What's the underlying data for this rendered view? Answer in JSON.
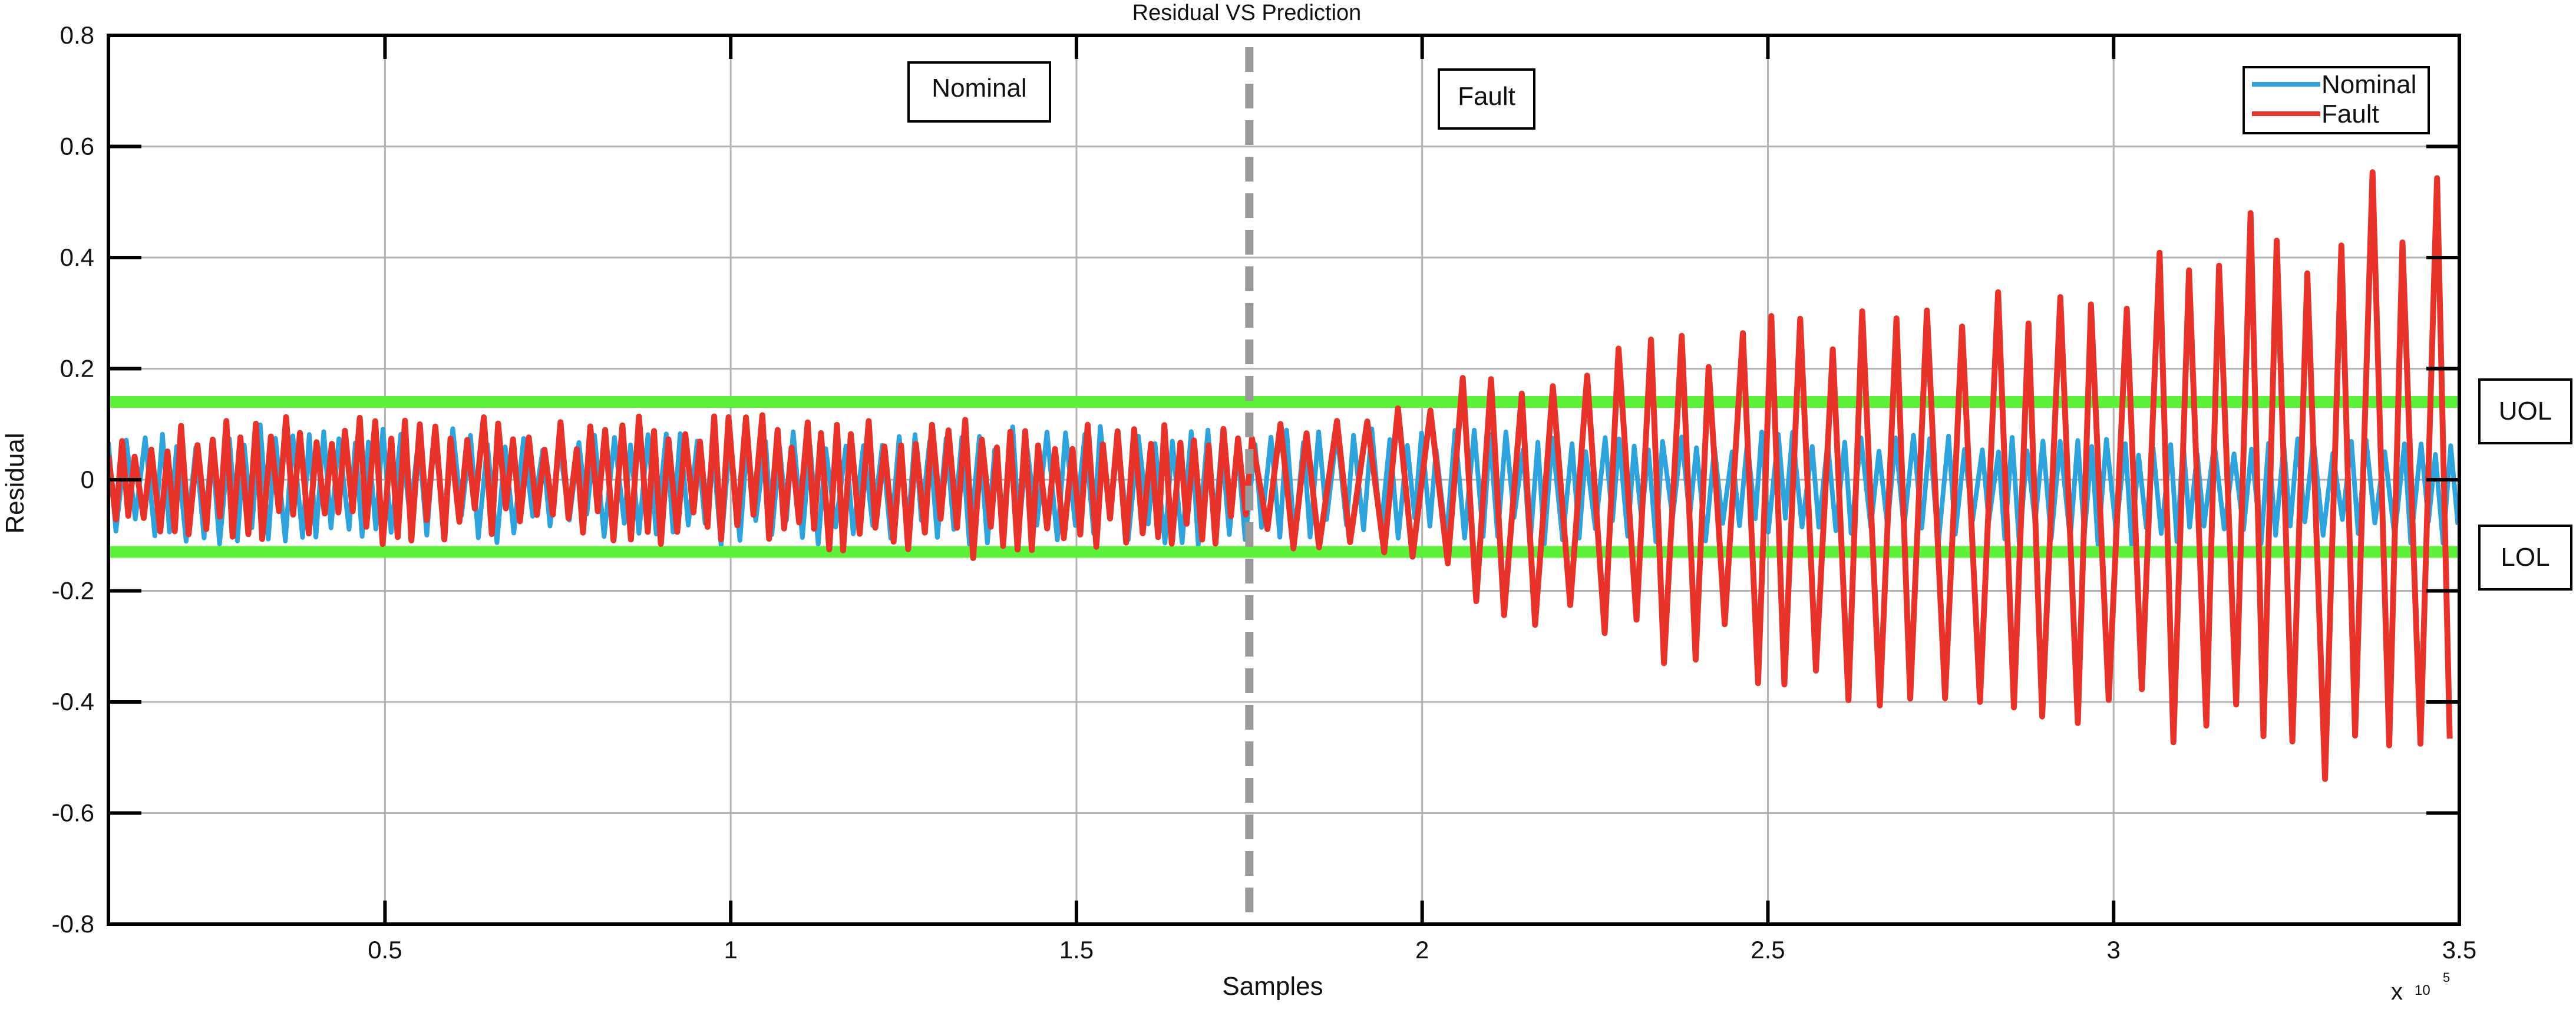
{
  "chart_data": {
    "type": "line",
    "title": "Residual VS Prediction",
    "xlabel": "Samples",
    "ylabel": "Residual",
    "x_exponent_base": "x",
    "x_exponent_ten": "10",
    "x_exponent_power": "5",
    "xlim": [
      0.1,
      3.5
    ],
    "ylim": [
      -0.8,
      0.8
    ],
    "x_ticks": [
      0.5,
      1,
      1.5,
      2,
      2.5,
      3,
      3.5
    ],
    "x_tick_labels": [
      "0.5",
      "1",
      "1.5",
      "2",
      "2.5",
      "3",
      "3.5"
    ],
    "y_ticks": [
      -0.8,
      -0.6,
      -0.4,
      -0.2,
      0,
      0.2,
      0.4,
      0.6,
      0.8
    ],
    "y_tick_labels": [
      "-0.8",
      "-0.6",
      "-0.4",
      "-0.2",
      "0",
      "0.2",
      "0.4",
      "0.6",
      "0.8"
    ],
    "grid": true,
    "legend_position": "top-right",
    "colors": {
      "nominal": "#2ea3dc",
      "fault": "#e8332a",
      "threshold": "#5cf23a",
      "fault_onset": "#999999",
      "grid": "#b3b3b3"
    },
    "thresholds": [
      {
        "name": "UOL",
        "value": 0.14
      },
      {
        "name": "LOL",
        "value": -0.13
      }
    ],
    "fault_onset_x": 1.75,
    "region_labels": {
      "nominal": "Nominal",
      "fault": "Fault"
    },
    "series": [
      {
        "name": "Nominal",
        "description_range": [
          -0.13,
          0.1
        ],
        "x": [
          0.1,
          0.25,
          0.5,
          0.75,
          1.0,
          1.25,
          1.5,
          1.75,
          2.0,
          2.25,
          2.5,
          2.75,
          3.0,
          3.25,
          3.5
        ],
        "upper": [
          0.08,
          0.1,
          0.1,
          0.09,
          0.1,
          0.09,
          0.1,
          0.1,
          0.09,
          0.09,
          0.09,
          0.08,
          0.08,
          0.08,
          0.07
        ],
        "lower": [
          -0.11,
          -0.12,
          -0.12,
          -0.11,
          -0.12,
          -0.12,
          -0.12,
          -0.13,
          -0.12,
          -0.12,
          -0.12,
          -0.12,
          -0.12,
          -0.12,
          -0.12
        ]
      },
      {
        "name": "Fault",
        "x": [
          0.1,
          0.25,
          0.5,
          0.75,
          1.0,
          1.25,
          1.5,
          1.75,
          1.9,
          2.0,
          2.25,
          2.5,
          2.75,
          3.0,
          3.25,
          3.5
        ],
        "upper": [
          0.08,
          0.11,
          0.12,
          0.11,
          0.12,
          0.11,
          0.11,
          0.09,
          0.13,
          0.17,
          0.25,
          0.3,
          0.35,
          0.42,
          0.5,
          0.63
        ],
        "lower": [
          -0.11,
          -0.12,
          -0.12,
          -0.11,
          -0.12,
          -0.15,
          -0.14,
          -0.11,
          -0.15,
          -0.2,
          -0.3,
          -0.38,
          -0.45,
          -0.52,
          -0.57,
          -0.61
        ]
      }
    ]
  }
}
